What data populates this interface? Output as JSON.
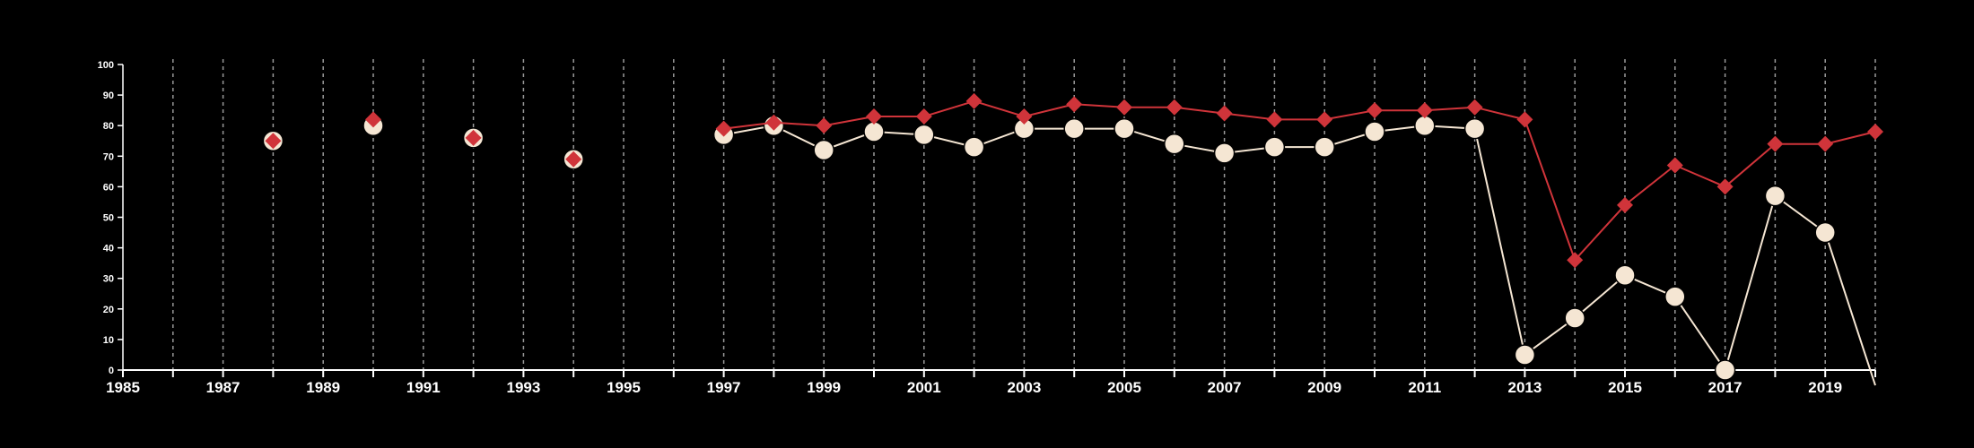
{
  "chart_data": {
    "type": "line",
    "title": "",
    "xlabel": "",
    "ylabel": "",
    "xlim": [
      1985,
      2020
    ],
    "ylim": [
      0,
      100
    ],
    "grid": "vertical dashed",
    "x_tick_labels": [
      "1985",
      "1987",
      "1989",
      "1991",
      "1993",
      "1995",
      "1997",
      "1999",
      "2001",
      "2003",
      "2005",
      "2007",
      "2009",
      "2011",
      "2013",
      "2015",
      "2017",
      "2019"
    ],
    "y_tick_labels": [
      "0",
      "10",
      "20",
      "30",
      "40",
      "50",
      "60",
      "70",
      "80",
      "90",
      "100"
    ],
    "series": [
      {
        "color": "#f5e6d3",
        "marker": "circle",
        "points": [
          [
            1988,
            75
          ],
          [
            1990,
            80
          ],
          [
            1992,
            76
          ],
          [
            1994,
            69
          ],
          [
            1997,
            77
          ],
          [
            1998,
            80
          ],
          [
            1999,
            72
          ],
          [
            2000,
            78
          ],
          [
            2001,
            77
          ],
          [
            2002,
            73
          ],
          [
            2003,
            79
          ],
          [
            2004,
            79
          ],
          [
            2005,
            79
          ],
          [
            2006,
            74
          ],
          [
            2007,
            71
          ],
          [
            2008,
            73
          ],
          [
            2009,
            73
          ],
          [
            2010,
            78
          ],
          [
            2011,
            80
          ],
          [
            2012,
            79
          ],
          [
            2013,
            5
          ],
          [
            2014,
            17
          ],
          [
            2015,
            31
          ],
          [
            2016,
            24
          ],
          [
            2017,
            0
          ],
          [
            2018,
            57
          ],
          [
            2019,
            45
          ],
          [
            2020,
            -5
          ]
        ]
      },
      {
        "color": "#d0343a",
        "marker": "diamond",
        "points": [
          [
            1988,
            75
          ],
          [
            1990,
            82
          ],
          [
            1992,
            76
          ],
          [
            1994,
            69
          ],
          [
            1997,
            79
          ],
          [
            1998,
            81
          ],
          [
            1999,
            80
          ],
          [
            2000,
            83
          ],
          [
            2001,
            83
          ],
          [
            2002,
            88
          ],
          [
            2003,
            83
          ],
          [
            2004,
            87
          ],
          [
            2005,
            86
          ],
          [
            2006,
            86
          ],
          [
            2007,
            84
          ],
          [
            2008,
            82
          ],
          [
            2009,
            82
          ],
          [
            2010,
            85
          ],
          [
            2011,
            85
          ],
          [
            2012,
            86
          ],
          [
            2013,
            82
          ],
          [
            2014,
            36
          ],
          [
            2015,
            54
          ],
          [
            2016,
            67
          ],
          [
            2017,
            60
          ],
          [
            2018,
            74
          ],
          [
            2019,
            74
          ],
          [
            2020,
            78
          ]
        ]
      }
    ]
  }
}
